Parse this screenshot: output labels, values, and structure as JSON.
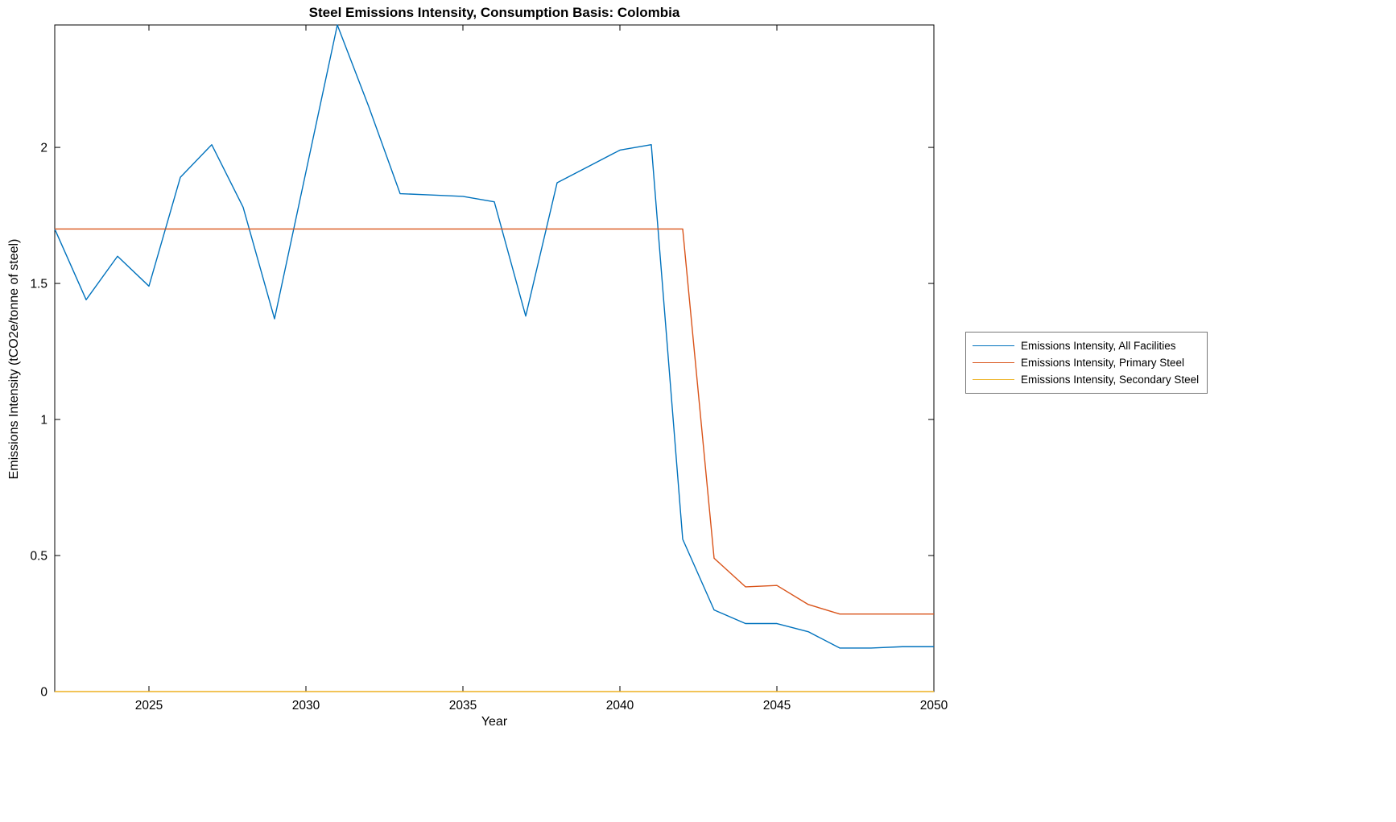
{
  "chart_data": {
    "type": "line",
    "title": "Steel Emissions Intensity, Consumption Basis: Colombia",
    "xlabel": "Year",
    "ylabel": "Emissions Intensity (tCO2e/tonne of steel)",
    "xlim": [
      2022,
      2050
    ],
    "ylim": [
      0,
      2.45
    ],
    "grid": false,
    "legend_position": "right-outside",
    "xticks": [
      2025,
      2030,
      2035,
      2040,
      2045,
      2050
    ],
    "xtick_labels": [
      "2025",
      "2030",
      "2035",
      "2040",
      "2045",
      "2050"
    ],
    "yticks": [
      0,
      0.5,
      1,
      1.5,
      2
    ],
    "ytick_labels": [
      "0",
      "0.5",
      "1",
      "1.5",
      "2"
    ],
    "x": [
      2022,
      2023,
      2024,
      2025,
      2026,
      2027,
      2028,
      2029,
      2030,
      2031,
      2032,
      2033,
      2034,
      2035,
      2036,
      2037,
      2038,
      2039,
      2040,
      2041,
      2042,
      2043,
      2044,
      2045,
      2046,
      2047,
      2048,
      2049,
      2050
    ],
    "series": [
      {
        "name": "Emissions Intensity, All Facilities",
        "color": "#0072BD",
        "values": [
          1.7,
          1.44,
          1.6,
          1.49,
          1.89,
          2.01,
          1.78,
          1.37,
          1.91,
          2.45,
          2.15,
          1.83,
          1.825,
          1.82,
          1.8,
          1.38,
          1.87,
          1.93,
          1.99,
          2.01,
          0.56,
          0.3,
          0.25,
          0.25,
          0.22,
          0.16,
          0.16,
          0.165,
          0.165
        ]
      },
      {
        "name": "Emissions Intensity, Primary Steel",
        "color": "#D95319",
        "values": [
          1.7,
          1.7,
          1.7,
          1.7,
          1.7,
          1.7,
          1.7,
          1.7,
          1.7,
          1.7,
          1.7,
          1.7,
          1.7,
          1.7,
          1.7,
          1.7,
          1.7,
          1.7,
          1.7,
          1.7,
          1.7,
          0.49,
          0.385,
          0.39,
          0.32,
          0.285,
          0.285,
          0.285,
          0.285
        ]
      },
      {
        "name": "Emissions Intensity, Secondary Steel",
        "color": "#EDB120",
        "values": [
          0,
          0,
          0,
          0,
          0,
          0,
          0,
          0,
          0,
          0,
          0,
          0,
          0,
          0,
          0,
          0,
          0,
          0,
          0,
          0,
          0,
          0,
          0,
          0,
          0,
          0,
          0,
          0,
          0
        ]
      }
    ]
  }
}
